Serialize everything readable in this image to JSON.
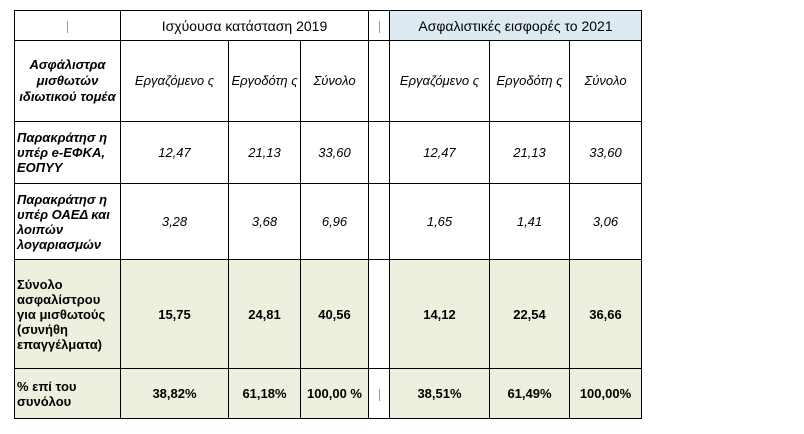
{
  "header": {
    "group1": "Ισχύουσα κατάσταση 2019",
    "group2": "Ασφαλιστικές εισφορές το 2021"
  },
  "col_label": "Ασφάλιστρα μισθωτών ιδιωτικού τομέα",
  "subheaders": {
    "g1": [
      "Εργαζόμενο ς",
      "Εργοδότη ς",
      "Σύνολο"
    ],
    "g2": [
      "Εργαζόμενο ς",
      "Εργοδότη ς",
      "Σύνολο"
    ]
  },
  "rows": [
    {
      "label": "Παρακράτησ η υπέρ e-ΕΦΚΑ, ΕΟΠΥΥ",
      "g1": [
        "12,47",
        "21,13",
        "33,60"
      ],
      "g2": [
        "12,47",
        "21,13",
        "33,60"
      ]
    },
    {
      "label": "Παρακράτησ η υπέρ ΟΑΕΔ και λοιπών λογαριασμών",
      "g1": [
        "3,28",
        "3,68",
        "6,96"
      ],
      "g2": [
        "1,65",
        "1,41",
        "3,06"
      ]
    },
    {
      "label": "Σύνολο ασφαλίστρου για μισθωτούς (συνήθη επαγγέλματα)",
      "g1": [
        "15,75",
        "24,81",
        "40,56"
      ],
      "g2": [
        "14,12",
        "22,54",
        "36,66"
      ]
    },
    {
      "label": "% επί του συνόλου",
      "g1": [
        "38,82%",
        "61,18%",
        "100,00 %"
      ],
      "g2": [
        "38,51%",
        "61,49%",
        "100,00%"
      ]
    }
  ],
  "colors": {
    "header_blue": "#deeaf1",
    "total_green": "#ebf1de"
  }
}
